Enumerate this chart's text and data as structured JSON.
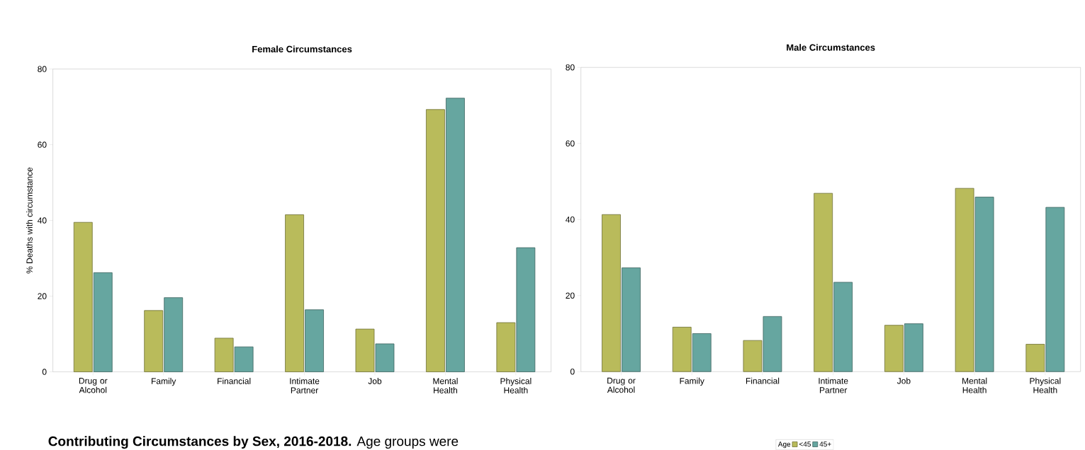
{
  "chart_data": [
    {
      "type": "bar",
      "title": "Female Circumstances",
      "ylabel": "% Deaths with circumstance",
      "categories": [
        "Drug or Alcohol",
        "Family",
        "Financial",
        "Intimate Partner",
        "Job",
        "Mental Health",
        "Physical Health"
      ],
      "series": [
        {
          "color": "#b9bb5b",
          "values": [
            39.5,
            16.2,
            8.9,
            41.5,
            11.3,
            69.3,
            13.0
          ]
        },
        {
          "color": "#66a6a0",
          "values": [
            26.2,
            19.6,
            6.6,
            16.4,
            7.4,
            72.3,
            32.8
          ]
        }
      ],
      "ylim": [
        0,
        80
      ],
      "yticks": [
        0,
        20,
        40,
        60,
        80
      ],
      "annotations": [
        "**Contributing Circumstances by Sex, 2016-2018.** Age groups were"
      ]
    },
    {
      "type": "bar",
      "title": "Male Circumstances",
      "categories": [
        "Drug or Alcohol",
        "Family",
        "Financial",
        "Intimate Partner",
        "Job",
        "Mental Health",
        "Physical Health"
      ],
      "series": [
        {
          "name": "<45",
          "color": "#b9bb5b",
          "values": [
            41.3,
            11.7,
            8.2,
            46.9,
            12.2,
            48.2,
            7.2
          ]
        },
        {
          "name": "45+",
          "color": "#66a6a0",
          "values": [
            27.3,
            10.0,
            14.5,
            23.5,
            12.6,
            45.9,
            43.2
          ]
        }
      ],
      "ylim": [
        0,
        80
      ],
      "yticks": [
        0,
        20,
        40,
        60,
        80
      ],
      "legend": "bottom",
      "legend_title": "Age"
    }
  ]
}
